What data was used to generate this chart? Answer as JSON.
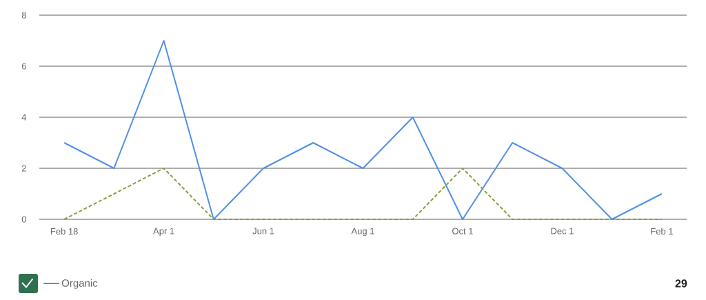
{
  "chart_data": {
    "type": "line",
    "categories": [
      "Feb 18",
      null,
      "Apr 1",
      null,
      "Jun 1",
      null,
      "Aug 1",
      null,
      "Oct 1",
      null,
      "Dec 1",
      null,
      "Feb 1"
    ],
    "series": [
      {
        "name": "Organic",
        "color": "#4f8fe6",
        "line_style": "solid",
        "values": [
          3,
          2,
          7,
          0,
          2,
          3,
          2,
          4,
          0,
          3,
          2,
          0,
          1
        ]
      },
      {
        "color": "#8c9c3c",
        "line_style": "dashed",
        "values": [
          0,
          1,
          2,
          0,
          0,
          0,
          0,
          0,
          2,
          0,
          0,
          0,
          0
        ]
      }
    ],
    "ylim": [
      0,
      8
    ],
    "yticks": [
      0,
      2,
      4,
      6,
      8
    ],
    "grid": "y",
    "legend": "bottom left",
    "marker": "none",
    "annotations": [
      "29"
    ]
  }
}
